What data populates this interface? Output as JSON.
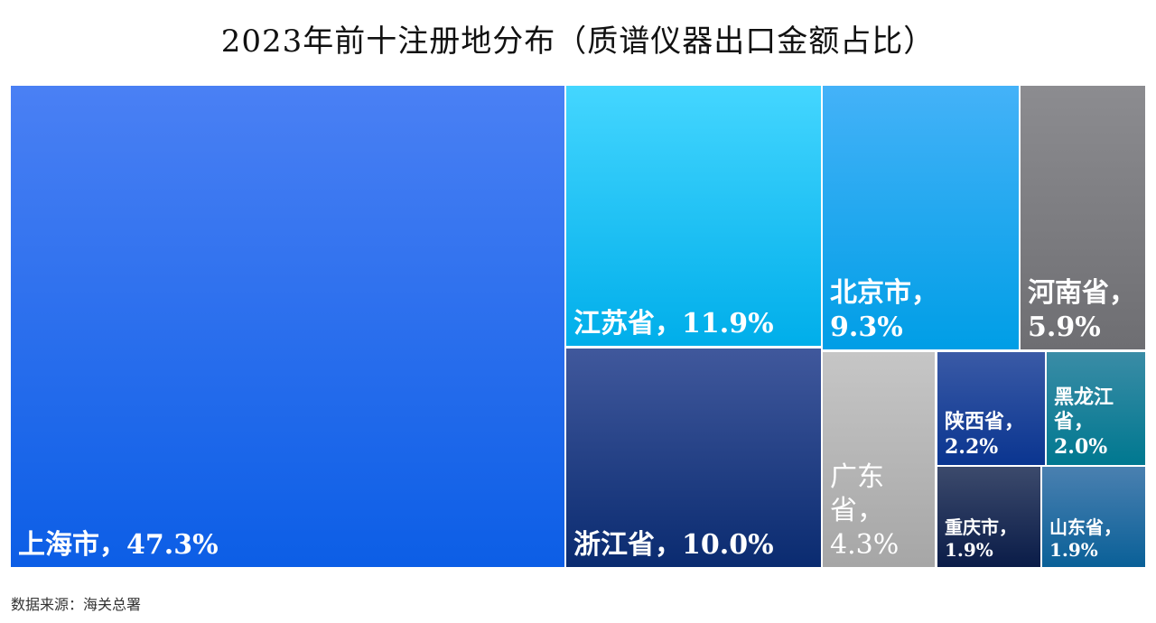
{
  "chart_data": {
    "type": "treemap",
    "title": "2023年前十注册地分布（质谱仪器出口金额占比）",
    "unit": "%",
    "items": [
      {
        "name": "上海市",
        "value": 47.3,
        "label": "47.3%",
        "color_top": "#4a80f4",
        "color_bottom": "#0c5ee6"
      },
      {
        "name": "江苏省",
        "value": 11.9,
        "label": "11.9%",
        "color_top": "#44d6ff",
        "color_bottom": "#00aeea"
      },
      {
        "name": "浙江省",
        "value": 10.0,
        "label": "10.0%",
        "color_top": "#40589c",
        "color_bottom": "#0a2b70"
      },
      {
        "name": "北京市",
        "value": 9.3,
        "label": "9.3%",
        "color_top": "#44b2f8",
        "color_bottom": "#009ee6"
      },
      {
        "name": "河南省",
        "value": 5.9,
        "label": "5.9%",
        "color_top": "#8c8c90",
        "color_bottom": "#6e6e72"
      },
      {
        "name": "广东省",
        "value": 4.3,
        "label": "4.3%",
        "color_top": "#c6c6c6",
        "color_bottom": "#a6a6a6"
      },
      {
        "name": "陕西省",
        "value": 2.2,
        "label": "2.2%",
        "color_top": "#3a5aa6",
        "color_bottom": "#0a3590"
      },
      {
        "name": "黑龙江省",
        "value": 2.0,
        "label": "2.0%",
        "color_top": "#3a8ca6",
        "color_bottom": "#007890"
      },
      {
        "name": "重庆市",
        "value": 1.9,
        "label": "1.9%",
        "color_top": "#3c4a6c",
        "color_bottom": "#0a1c48"
      },
      {
        "name": "山东省",
        "value": 1.9,
        "label": "1.9%",
        "color_top": "#4a80b0",
        "color_bottom": "#0a6098"
      }
    ]
  },
  "source": "数据来源：海关总署"
}
